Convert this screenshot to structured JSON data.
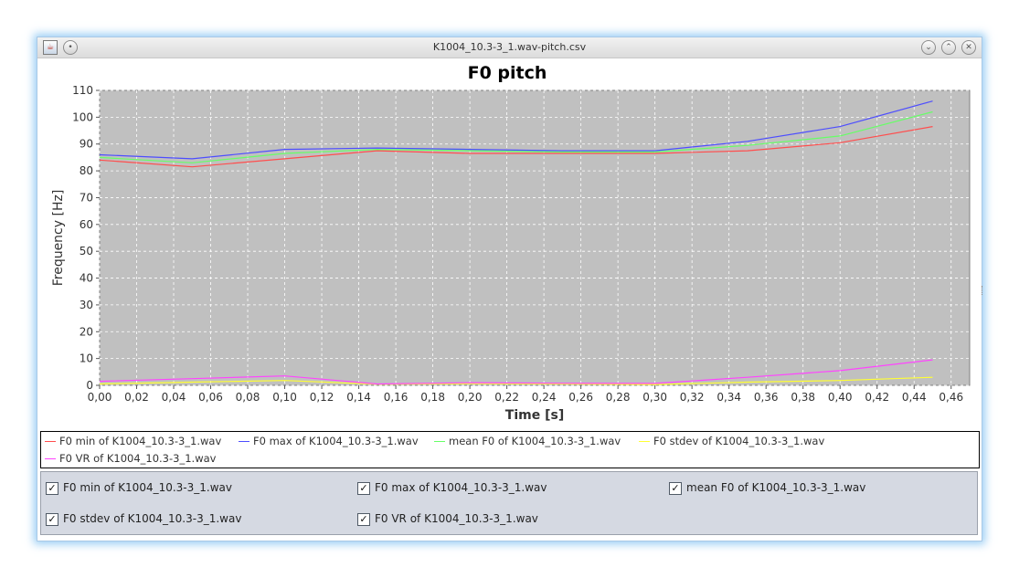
{
  "window": {
    "title": "K1004_10.3-3_1.wav-pitch.csv"
  },
  "chart_data": {
    "type": "line",
    "title": "F0 pitch",
    "xlabel": "Time [s]",
    "ylabel": "Frequency [Hz]",
    "xlim": [
      0.0,
      0.47
    ],
    "ylim": [
      0,
      110
    ],
    "x_ticks": [
      "0,00",
      "0,02",
      "0,04",
      "0,06",
      "0,08",
      "0,10",
      "0,12",
      "0,14",
      "0,16",
      "0,18",
      "0,20",
      "0,22",
      "0,24",
      "0,26",
      "0,28",
      "0,30",
      "0,32",
      "0,34",
      "0,36",
      "0,38",
      "0,40",
      "0,42",
      "0,44",
      "0,46"
    ],
    "y_ticks": [
      "0",
      "10",
      "20",
      "30",
      "40",
      "50",
      "60",
      "70",
      "80",
      "90",
      "100",
      "110"
    ],
    "grid": true,
    "x": [
      0.0,
      0.05,
      0.1,
      0.15,
      0.2,
      0.25,
      0.3,
      0.35,
      0.4,
      0.45
    ],
    "series": [
      {
        "name": "F0 min of K1004_10.3-3_1.wav",
        "color": "#ff4d4d",
        "values": [
          84,
          81.5,
          84.5,
          87.5,
          86.5,
          86.5,
          86.5,
          87.5,
          90.5,
          96.5
        ]
      },
      {
        "name": "F0 max of K1004_10.3-3_1.wav",
        "color": "#4d4dff",
        "values": [
          86,
          84.5,
          88,
          88.5,
          88,
          87.5,
          87.5,
          91,
          96.5,
          106
        ]
      },
      {
        "name": "mean F0 of K1004_10.3-3_1.wav",
        "color": "#66ff66",
        "values": [
          85,
          83,
          86.5,
          88,
          87.5,
          87,
          87,
          89.5,
          93,
          102
        ]
      },
      {
        "name": "F0 stdev of K1004_10.3-3_1.wav",
        "color": "#ffff33",
        "values": [
          0.5,
          1.2,
          1.8,
          0.4,
          0.6,
          0.5,
          0.3,
          1.2,
          1.8,
          3.0
        ]
      },
      {
        "name": "F0 VR of K1004_10.3-3_1.wav",
        "color": "#ff44ff",
        "values": [
          1.5,
          2.5,
          3.5,
          0.5,
          1.0,
          0.8,
          0.7,
          3.0,
          5.5,
          9.5
        ]
      }
    ]
  },
  "legend": {
    "items": [
      "F0 min of K1004_10.3-3_1.wav",
      "F0 max of K1004_10.3-3_1.wav",
      "mean F0 of K1004_10.3-3_1.wav",
      "F0 stdev of K1004_10.3-3_1.wav",
      "F0 VR of K1004_10.3-3_1.wav"
    ]
  },
  "checkboxes": [
    {
      "label": "F0 min of K1004_10.3-3_1.wav",
      "checked": true
    },
    {
      "label": "F0 max of K1004_10.3-3_1.wav",
      "checked": true
    },
    {
      "label": "mean F0 of K1004_10.3-3_1.wav",
      "checked": true
    },
    {
      "label": "F0 stdev of K1004_10.3-3_1.wav",
      "checked": true
    },
    {
      "label": "F0 VR of K1004_10.3-3_1.wav",
      "checked": true
    }
  ],
  "icons": {
    "app": "java-cup-icon",
    "menu": "window-menu-icon",
    "minimize": "minimize-icon",
    "maximize": "maximize-icon",
    "close": "close-icon"
  }
}
